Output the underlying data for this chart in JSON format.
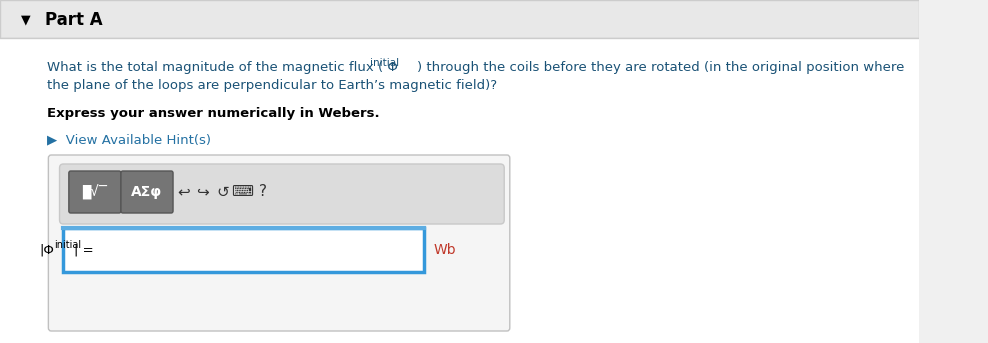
{
  "bg_color": "#f0f0f0",
  "white_bg": "#ffffff",
  "part_a_text": "Part A",
  "part_a_color": "#000000",
  "header_bg": "#e8e8e8",
  "header_border": "#cccccc",
  "question_text_line1": "What is the total magnitude of the magnetic flux (Φ",
  "question_text_line1b": "initial",
  "question_text_line1c": ") through the coils before they are rotated (in the original position where",
  "question_text_line2": "the plane of the loops are perpendicular to Earth’s magnetic field)?",
  "question_color": "#1a5276",
  "bold_text": "Express your answer numerically in Webers.",
  "bold_color": "#000000",
  "hint_text": "▶  View Available Hint(s)",
  "hint_color": "#2471a3",
  "input_border_color": "#2e86c1",
  "input_bg": "#ffffff",
  "wb_color": "#c0392b",
  "label_color": "#000000",
  "toolbar_bg": "#e0e0e0",
  "toolbar_btn_color": "#6d6d6d",
  "answer_box_border": "#3498db"
}
